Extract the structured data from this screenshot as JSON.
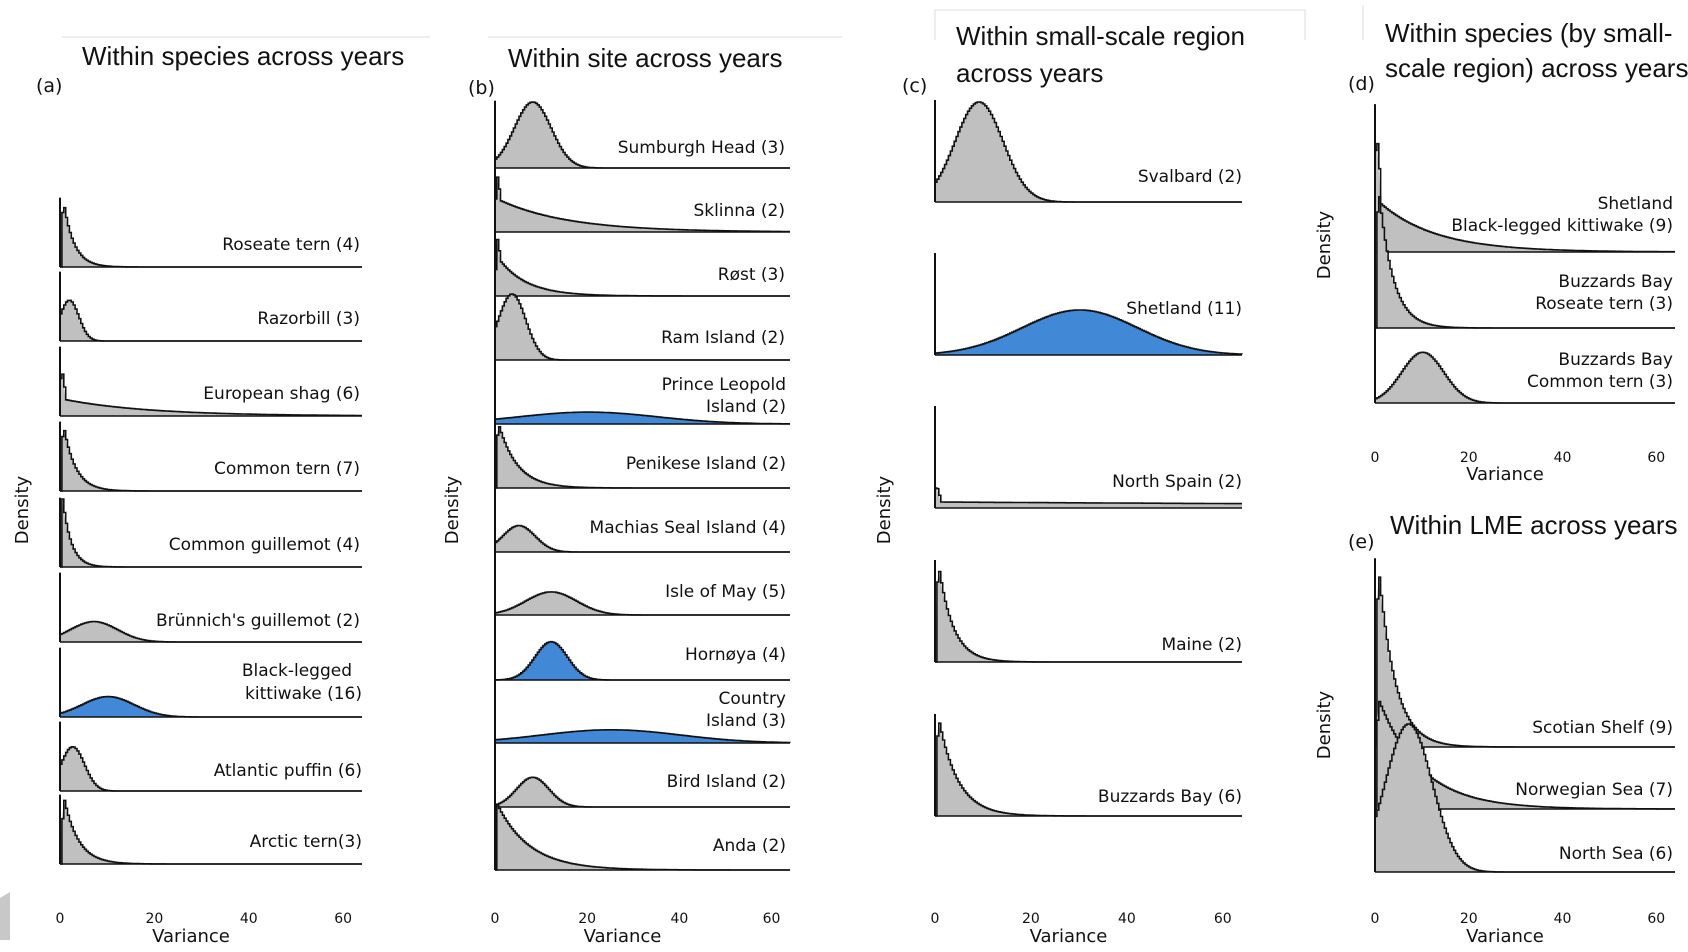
{
  "colors": {
    "gray": "#c0c0c0",
    "blue": "#4189d6",
    "line": "#111111"
  },
  "chart_data": [
    {
      "panel": "(a)",
      "title": "Within species across years",
      "type": "area",
      "xlabel": "Variance",
      "ylabel": "Density",
      "xlim": [
        0,
        64
      ],
      "xticks": [
        0,
        20,
        40,
        60
      ],
      "grid": false,
      "ridges": [
        {
          "label": "Roseate tern (4)",
          "fill": "gray",
          "shape": "exp",
          "peak": 0.5,
          "width": 2.2,
          "amp": 1.0
        },
        {
          "label": "Razorbill (3)",
          "fill": "gray",
          "shape": "gauss",
          "peak": 1.8,
          "width": 2.0,
          "amp": 0.6
        },
        {
          "label": "European shag (6)",
          "fill": "gray",
          "shape": "exp",
          "peak": 0.3,
          "width": 18,
          "amp": 0.25,
          "spike": 0.55
        },
        {
          "label": "Common tern (7)",
          "fill": "gray",
          "shape": "exp",
          "peak": 0.5,
          "width": 2.5,
          "amp": 1.0
        },
        {
          "label": "Common guillemot (4)",
          "fill": "gray",
          "shape": "exp",
          "peak": 0.4,
          "width": 1.8,
          "amp": 1.0
        },
        {
          "label": "Brünnich's guillemot (2)",
          "fill": "gray",
          "shape": "gauss",
          "peak": 7,
          "width": 5,
          "amp": 0.3
        },
        {
          "label": "Black-legged kittiwake (16)",
          "fill": "blue",
          "shape": "gauss",
          "peak": 10,
          "width": 5.5,
          "amp": 0.3
        },
        {
          "label": "Atlantic puffin (6)",
          "fill": "gray",
          "shape": "gauss",
          "peak": 2.5,
          "width": 2.5,
          "amp": 0.65
        },
        {
          "label": "Arctic tern(3)",
          "fill": "gray",
          "shape": "exp",
          "peak": 0.6,
          "width": 3,
          "amp": 1.0
        }
      ]
    },
    {
      "panel": "(b)",
      "title": "Within site across years",
      "type": "area",
      "xlabel": "Variance",
      "ylabel": "Density",
      "xlim": [
        0,
        64
      ],
      "xticks": [
        0,
        20,
        40,
        60
      ],
      "grid": false,
      "ridges": [
        {
          "label": "Sumburgh Head (3)",
          "fill": "gray",
          "shape": "gauss",
          "peak": 8,
          "width": 4,
          "amp": 1.0
        },
        {
          "label": "Sklinna (2)",
          "fill": "gray",
          "shape": "exp",
          "peak": 0.3,
          "width": 15,
          "amp": 0.5,
          "spike": 0.5
        },
        {
          "label": "Røst (3)",
          "fill": "gray",
          "shape": "exp",
          "peak": 0.3,
          "width": 6,
          "amp": 0.6,
          "spike": 0.4
        },
        {
          "label": "Ram Island (2)",
          "fill": "gray",
          "shape": "gauss",
          "peak": 3.5,
          "width": 3,
          "amp": 1.0
        },
        {
          "label": "Prince Leopold Island (2)",
          "fill": "blue",
          "shape": "gauss",
          "peak": 20,
          "width": 15,
          "amp": 0.18
        },
        {
          "label": "Penikese Island (2)",
          "fill": "gray",
          "shape": "exp",
          "peak": 0.5,
          "width": 4,
          "amp": 1.0
        },
        {
          "label": "Machias Seal Island (4)",
          "fill": "gray",
          "shape": "gauss",
          "peak": 5,
          "width": 3.5,
          "amp": 0.4
        },
        {
          "label": "Isle of May (5)",
          "fill": "gray",
          "shape": "gauss",
          "peak": 12,
          "width": 5.5,
          "amp": 0.35
        },
        {
          "label": "Hornøya (4)",
          "fill": "blue",
          "shape": "gauss",
          "peak": 12,
          "width": 3.5,
          "amp": 0.58
        },
        {
          "label": "Country Island (3)",
          "fill": "blue",
          "shape": "gauss",
          "peak": 25,
          "width": 15,
          "amp": 0.2
        },
        {
          "label": "Bird Island (2)",
          "fill": "gray",
          "shape": "gauss",
          "peak": 8,
          "width": 3.5,
          "amp": 0.45
        },
        {
          "label": "Anda (2)",
          "fill": "gray",
          "shape": "exp",
          "peak": 0.3,
          "width": 7,
          "amp": 1.0
        }
      ]
    },
    {
      "panel": "(c)",
      "title": "Within small-scale region across years",
      "type": "area",
      "xlabel": "Variance",
      "ylabel": "Density",
      "xlim": [
        0,
        64
      ],
      "xticks": [
        0,
        20,
        40,
        60
      ],
      "grid": false,
      "ridges": [
        {
          "label": "Svalbard (2)",
          "fill": "gray",
          "shape": "gauss",
          "peak": 9,
          "width": 5,
          "amp": 1.0
        },
        {
          "label": "Shetland (11)",
          "fill": "blue",
          "shape": "gauss",
          "peak": 30,
          "width": 12,
          "amp": 0.45
        },
        {
          "label": "North Spain (2)",
          "fill": "gray",
          "shape": "exp",
          "peak": 0.3,
          "width": 200,
          "amp": 0.06,
          "spike": 0.2
        },
        {
          "label": "Maine (2)",
          "fill": "gray",
          "shape": "exp",
          "peak": 0.5,
          "width": 3,
          "amp": 1.0
        },
        {
          "label": "Buzzards Bay (6)",
          "fill": "gray",
          "shape": "exp",
          "peak": 0.5,
          "width": 4,
          "amp": 1.0
        }
      ]
    },
    {
      "panel": "(d)",
      "title": "Within species (by small-scale region) across years",
      "type": "area",
      "xlabel": "Variance",
      "ylabel": "Density",
      "xlim": [
        0,
        64
      ],
      "xticks": [
        0,
        20,
        40,
        60
      ],
      "grid": false,
      "ridges": [
        {
          "label": "Shetland Black-legged kittiwake (9)",
          "fill": "gray",
          "shape": "exp",
          "peak": 0.5,
          "width": 12,
          "amp": 0.35,
          "spike": 0.7
        },
        {
          "label": "Buzzards Bay Roseate tern (3)",
          "fill": "gray",
          "shape": "exp",
          "peak": 0.5,
          "width": 3,
          "amp": 1.0
        },
        {
          "label": "Buzzards Bay Common tern (3)",
          "fill": "gray",
          "shape": "gauss",
          "peak": 10,
          "width": 4.5,
          "amp": 0.35
        }
      ]
    },
    {
      "panel": "(e)",
      "title": "Within LME across years",
      "type": "area",
      "xlabel": "Variance",
      "ylabel": "Density",
      "xlim": [
        0,
        64
      ],
      "xticks": [
        0,
        20,
        40,
        60
      ],
      "grid": false,
      "ridges": [
        {
          "label": "Scotian Shelf (9)",
          "fill": "gray",
          "shape": "exp",
          "peak": 0.5,
          "width": 3.5,
          "amp": 1.0
        },
        {
          "label": "Norwegian Sea (7)",
          "fill": "gray",
          "shape": "exp",
          "peak": 0.5,
          "width": 9,
          "amp": 0.6
        },
        {
          "label": "North Sea (6)",
          "fill": "gray",
          "shape": "gauss",
          "peak": 7,
          "width": 5,
          "amp": 0.8
        }
      ]
    }
  ]
}
